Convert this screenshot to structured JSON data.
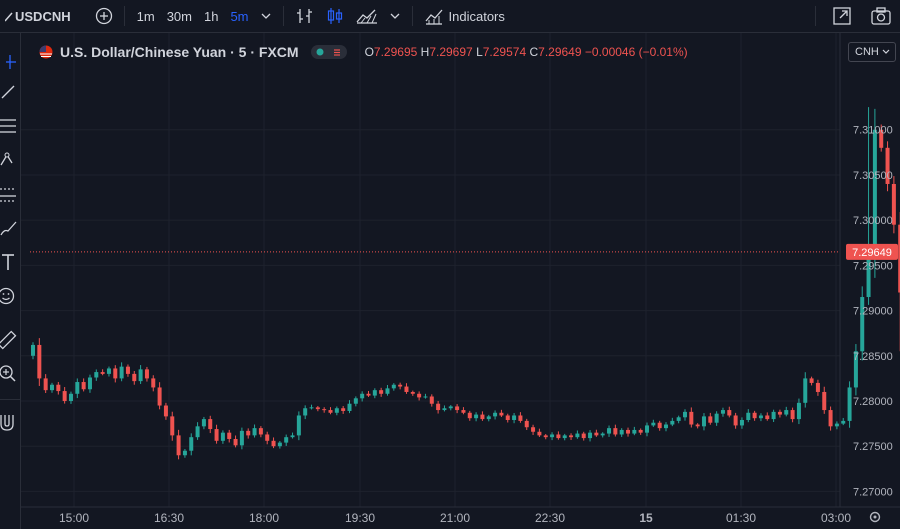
{
  "toolbar": {
    "symbol": "USDCNH",
    "intervals": [
      "1m",
      "30m",
      "1h",
      "5m"
    ],
    "active_interval": "5m",
    "indicators_label": "Indicators"
  },
  "legend": {
    "title": "U.S. Dollar/Chinese Yuan · 5 · FXCM",
    "open_label": "O",
    "open": "7.29695",
    "high_label": "H",
    "high": "7.29697",
    "low_label": "L",
    "low": "7.29574",
    "close_label": "C",
    "close": "7.29649",
    "change": "−0.00046 (−0.01%)"
  },
  "currency_button": "CNH",
  "colors": {
    "up": "#26a69a",
    "down": "#ef5350",
    "background": "#131722",
    "accent": "#2962ff"
  },
  "chart_data": {
    "type": "candlestick",
    "symbol": "USDCNH",
    "interval": "5m",
    "y_ticks": [
      "7.31000",
      "7.30500",
      "7.30000",
      "7.29500",
      "7.29000",
      "7.28500",
      "7.28000",
      "7.27500",
      "7.27000"
    ],
    "ylim": [
      7.2685,
      7.3155
    ],
    "x_ticks": [
      "15:00",
      "16:30",
      "18:00",
      "19:30",
      "21:00",
      "22:30",
      "15",
      "01:30",
      "03:00"
    ],
    "last_price": "7.29649",
    "closes": [
      7.2862,
      7.2825,
      7.2812,
      7.2818,
      7.2811,
      7.28,
      7.2808,
      7.2821,
      7.2813,
      7.2826,
      7.2832,
      7.283,
      7.2836,
      7.2825,
      7.2838,
      7.283,
      7.2822,
      7.2835,
      7.2825,
      7.2815,
      7.2795,
      7.2783,
      7.2762,
      7.274,
      7.2745,
      7.276,
      7.2772,
      7.278,
      7.2769,
      7.2756,
      7.2765,
      7.2758,
      7.2751,
      7.2767,
      7.2762,
      7.277,
      7.2763,
      7.2756,
      7.275,
      7.2754,
      7.276,
      7.2762,
      7.2784,
      7.2792,
      7.2793,
      7.2791,
      7.279,
      7.2787,
      7.2792,
      7.2789,
      7.2797,
      7.2803,
      7.2808,
      7.2806,
      7.2812,
      7.2808,
      7.2814,
      7.2818,
      7.2816,
      7.281,
      7.2808,
      7.2804,
      7.2805,
      7.2797,
      7.279,
      7.2792,
      7.2794,
      7.279,
      7.2787,
      7.2781,
      7.2785,
      7.278,
      7.2783,
      7.2787,
      7.2784,
      7.2779,
      7.2784,
      7.2778,
      7.2771,
      7.2766,
      7.2762,
      7.276,
      7.2763,
      7.2759,
      7.2762,
      7.276,
      7.2764,
      7.2759,
      7.2765,
      7.2762,
      7.2764,
      7.277,
      7.2763,
      7.2768,
      7.2764,
      7.2768,
      7.2765,
      7.2773,
      7.2776,
      7.277,
      7.2774,
      7.2778,
      7.2782,
      7.2788,
      7.2774,
      7.2772,
      7.2783,
      7.2776,
      7.2786,
      7.279,
      7.2784,
      7.2773,
      7.2779,
      7.2787,
      7.2781,
      7.2784,
      7.278,
      7.2788,
      7.2785,
      7.279,
      7.278,
      7.2798,
      7.2825,
      7.282,
      7.281,
      7.279,
      7.2772,
      7.2775,
      7.2778,
      7.2815,
      7.2855,
      7.2915,
      7.296,
      7.31,
      7.308,
      7.304,
      7.2995,
      7.292,
      7.2902,
      7.2918,
      7.294,
      7.2955,
      7.2968,
      7.2965
    ]
  }
}
